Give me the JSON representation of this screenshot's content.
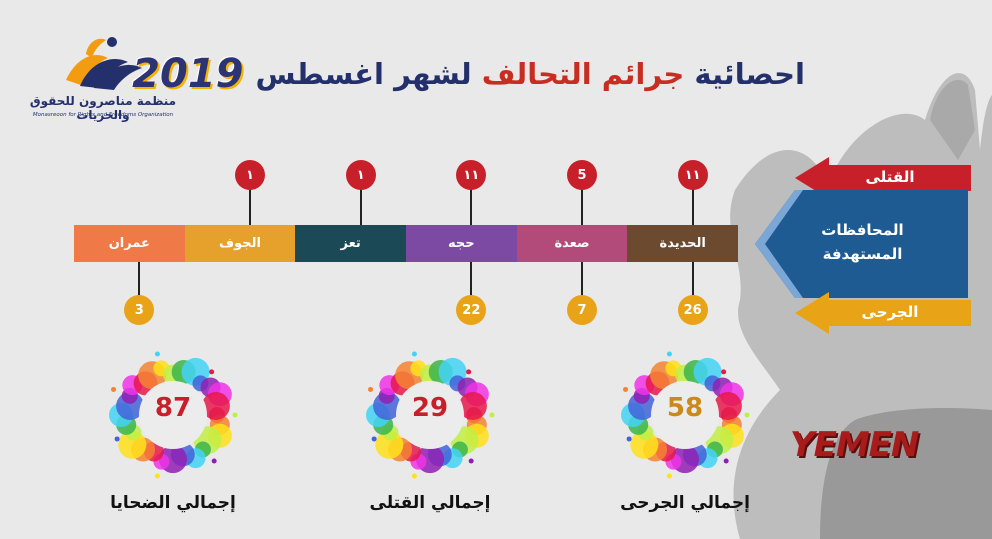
{
  "logo": {
    "name_ar": "منظمة مناصرون للحقوق والحريات",
    "name_en": "Monasreoon for Rights and Freedoms Organization"
  },
  "title": {
    "text_before": "احصائية",
    "text_highlight": "جرائم التحالف",
    "text_after": "لشهر اغسطس",
    "year": "2019"
  },
  "legend": {
    "killed": "القتلى",
    "governorates": "المحافظات المستهدفة",
    "injured": "الجرحى"
  },
  "colors": {
    "killed": "#c8202a",
    "injured": "#e8a416",
    "legend_blue": "#1f5b93"
  },
  "chart_data": {
    "type": "table",
    "categories": [
      "الحديدة",
      "صعدة",
      "حجه",
      "تعز",
      "الجوف",
      "عمران"
    ],
    "category_colors": [
      "#6b4a30",
      "#b24b7a",
      "#7d4aa3",
      "#1b4a56",
      "#e5a12b",
      "#f07a47"
    ],
    "series": [
      {
        "name": "القتلى",
        "labels": [
          "١١",
          "5",
          "١١",
          "١",
          "١",
          null
        ],
        "values": [
          11,
          5,
          11,
          1,
          1,
          null
        ]
      },
      {
        "name": "الجرحى",
        "labels": [
          "26",
          "7",
          "22",
          null,
          null,
          "3"
        ],
        "values": [
          26,
          7,
          22,
          null,
          null,
          3
        ]
      }
    ]
  },
  "totals": [
    {
      "value": "58",
      "label": "إجمالي الجرحى",
      "color": "#c98a1a"
    },
    {
      "value": "29",
      "label": "إجمالي القتلى",
      "color": "#c8202a"
    },
    {
      "value": "87",
      "label": "إجمالي الضحايا",
      "color": "#c8202a"
    }
  ],
  "watermark": "YEMEN"
}
